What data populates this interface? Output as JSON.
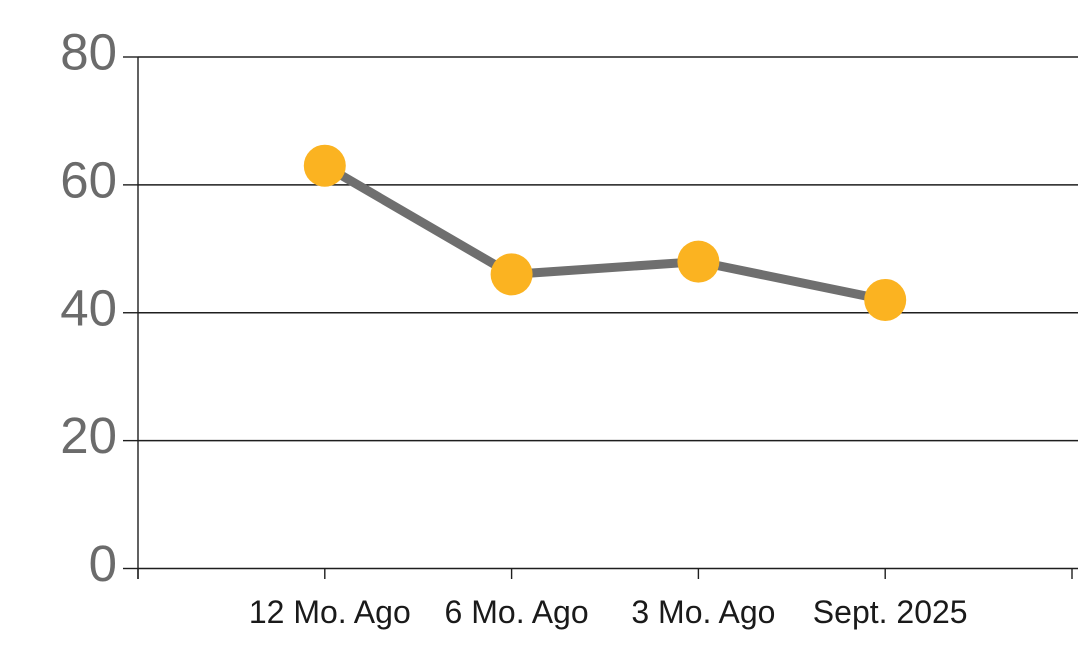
{
  "chart_data": {
    "type": "line",
    "categories": [
      "12 Mo. Ago",
      "6 Mo. Ago",
      "3 Mo. Ago",
      "Sept. 2025"
    ],
    "values": [
      63,
      46,
      48,
      42
    ],
    "yticks": [
      0,
      20,
      40,
      60,
      80
    ],
    "ytick_labels": [
      "0",
      "20",
      "40",
      "60",
      "80"
    ],
    "ylim": [
      0,
      80
    ],
    "grid": true,
    "legend": false,
    "colors": {
      "marker": "#FBB321",
      "line": "#6F6F6F",
      "gridline": "#1E1E1E",
      "axis": "#1E1E1E",
      "y_tick_label": "#6B6B6B",
      "x_tick_label": "#1A1A1A",
      "background": "#FFFFFF"
    }
  }
}
